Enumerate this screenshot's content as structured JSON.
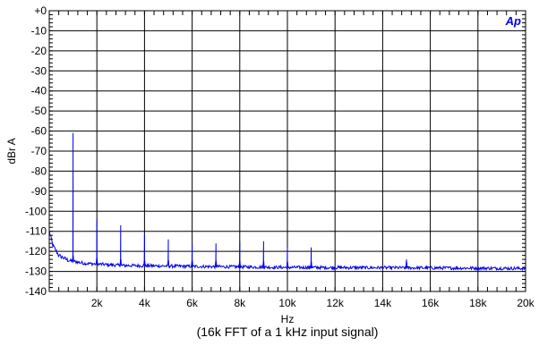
{
  "chart_data": {
    "type": "line",
    "title": "",
    "caption": "(16k FFT of a 1 kHz input signal)",
    "xlabel": "Hz",
    "ylabel": "dBr A",
    "xlim": [
      0,
      20000
    ],
    "ylim": [
      -140,
      0
    ],
    "grid": true,
    "x_ticks": [
      2000,
      4000,
      6000,
      8000,
      10000,
      12000,
      14000,
      16000,
      18000,
      20000
    ],
    "x_tick_labels": [
      "2k",
      "4k",
      "6k",
      "8k",
      "10k",
      "12k",
      "14k",
      "16k",
      "18k",
      "20k"
    ],
    "y_ticks": [
      0,
      -10,
      -20,
      -30,
      -40,
      -50,
      -60,
      -70,
      -80,
      -90,
      -100,
      -110,
      -120,
      -130,
      -140
    ],
    "y_tick_labels": [
      "+0",
      "-10",
      "-20",
      "-30",
      "-40",
      "-50",
      "-60",
      "-70",
      "-80",
      "-90",
      "-100",
      "-110",
      "-120",
      "-130",
      "-140"
    ],
    "series": [
      {
        "color": "#0000ee",
        "noise_floor": [
          [
            0,
            -110
          ],
          [
            150,
            -117
          ],
          [
            400,
            -122
          ],
          [
            800,
            -124.5
          ],
          [
            1500,
            -126
          ],
          [
            3000,
            -127
          ],
          [
            6000,
            -127.5
          ],
          [
            10000,
            -128
          ],
          [
            15000,
            -128.2
          ],
          [
            20000,
            -128.5
          ]
        ],
        "peaks": [
          {
            "x": 1000,
            "y": -61
          },
          {
            "x": 2000,
            "y": -104
          },
          {
            "x": 3000,
            "y": -107
          },
          {
            "x": 4000,
            "y": -111
          },
          {
            "x": 5000,
            "y": -114
          },
          {
            "x": 6000,
            "y": -116
          },
          {
            "x": 7000,
            "y": -116
          },
          {
            "x": 8000,
            "y": -115
          },
          {
            "x": 9000,
            "y": -115
          },
          {
            "x": 10000,
            "y": -118
          },
          {
            "x": 11000,
            "y": -118
          },
          {
            "x": 15000,
            "y": -124
          }
        ]
      }
    ]
  },
  "logo": {
    "text": "Ap",
    "color": "#0000ee"
  }
}
